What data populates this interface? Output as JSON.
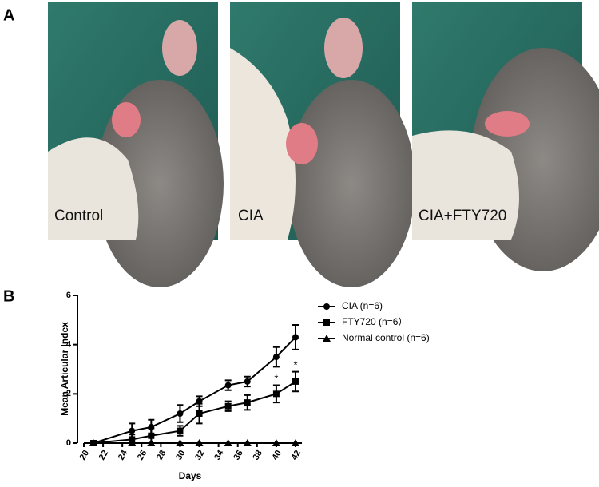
{
  "panel_a": {
    "label": "A",
    "photos": [
      {
        "caption": "Control"
      },
      {
        "caption": "CIA"
      },
      {
        "caption": "CIA+FTY720"
      }
    ]
  },
  "panel_b_label": "B",
  "chart_data": {
    "type": "line",
    "x_label": "Days",
    "y_label": "Mean Articular Index",
    "x": [
      21,
      25,
      27,
      30,
      32,
      35,
      37,
      40,
      42
    ],
    "series": [
      {
        "name": "CIA (n=6)",
        "color": "#000000",
        "marker": "circle",
        "values": [
          0,
          0.5,
          0.65,
          1.2,
          1.7,
          2.35,
          2.5,
          3.5,
          4.3
        ],
        "errors": [
          0,
          0.3,
          0.3,
          0.35,
          0.2,
          0.2,
          0.2,
          0.4,
          0.5
        ]
      },
      {
        "name": "FTY720 (n=6）",
        "color": "#000000",
        "marker": "square",
        "values": [
          0,
          0.15,
          0.3,
          0.5,
          1.2,
          1.5,
          1.65,
          2.0,
          2.5
        ],
        "errors": [
          0,
          0.2,
          0.3,
          0.2,
          0.4,
          0.2,
          0.3,
          0.35,
          0.4
        ]
      },
      {
        "name": "Normal control (n=6)",
        "color": "#000000",
        "marker": "triangle",
        "values": [
          0,
          0,
          0,
          0,
          0,
          0,
          0,
          0,
          0
        ]
      }
    ],
    "annotations": [
      {
        "x": 40,
        "y": 2.6,
        "text": "*"
      },
      {
        "x": 42,
        "y": 3.15,
        "text": "*"
      }
    ],
    "xlim": [
      20,
      42
    ],
    "xticks": [
      20,
      22,
      24,
      26,
      28,
      30,
      32,
      34,
      36,
      38,
      40,
      42
    ],
    "ylim": [
      0,
      6
    ],
    "yticks": [
      0,
      2,
      4,
      6
    ],
    "legend": "upper-right"
  }
}
